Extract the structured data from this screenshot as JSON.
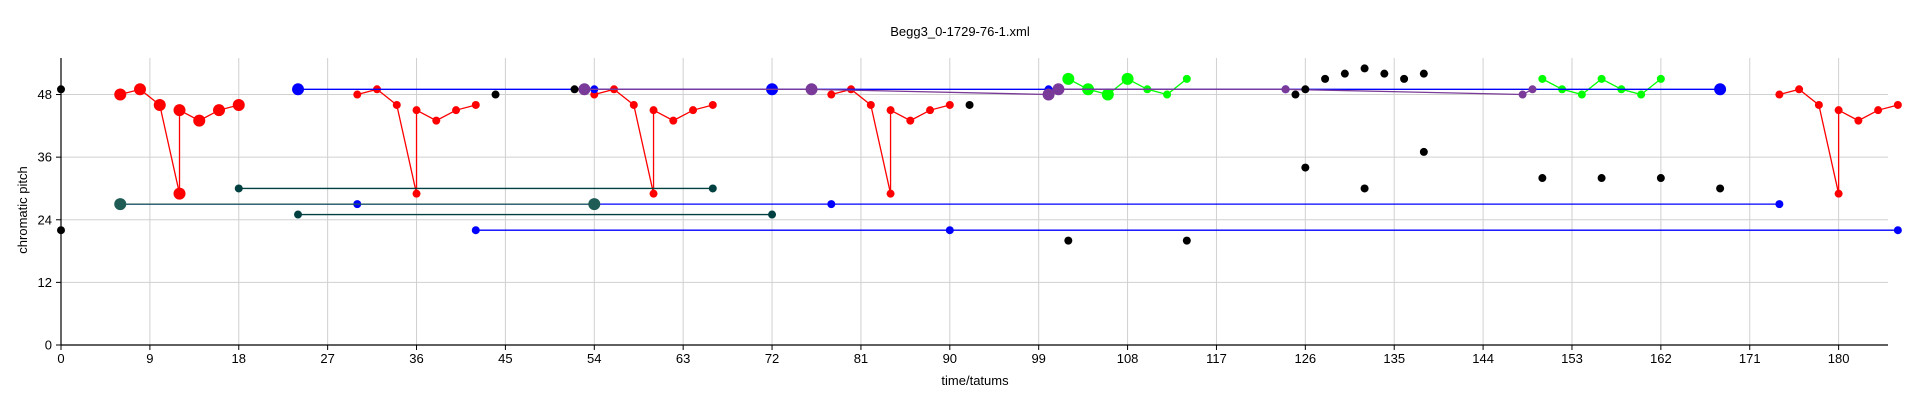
{
  "chart_data": {
    "type": "scatter",
    "title": "Begg3_0-1729-76-1.xml",
    "xlabel": "time/tatums",
    "ylabel": "chromatic pitch",
    "xlim": [
      0,
      185
    ],
    "ylim": [
      0,
      55
    ],
    "xticks": [
      0,
      9,
      18,
      27,
      36,
      45,
      54,
      63,
      72,
      81,
      90,
      99,
      108,
      117,
      126,
      135,
      144,
      153,
      162,
      171,
      180
    ],
    "yticks": [
      0,
      12,
      24,
      36,
      48
    ],
    "grid": true,
    "colors": {
      "red": "#ff0000",
      "blue": "#0000ff",
      "green": "#00ff00",
      "teal": "#1f5c55",
      "darkgreen": "#004040",
      "purple": "#7a3a99",
      "black": "#000000"
    },
    "series": [
      {
        "color": "red",
        "style": "line",
        "x": [
          6,
          8,
          10,
          12,
          12,
          14,
          16,
          18
        ],
        "y": [
          48,
          49,
          46,
          29,
          45,
          43,
          45,
          46
        ],
        "sizes": [
          2,
          2,
          2,
          2,
          2,
          2,
          2,
          2
        ]
      },
      {
        "color": "red",
        "style": "line",
        "x": [
          30,
          32,
          34,
          36,
          36,
          38,
          40,
          42
        ],
        "y": [
          48,
          49,
          46,
          29,
          45,
          43,
          45,
          46
        ]
      },
      {
        "color": "red",
        "style": "line",
        "x": [
          54,
          56,
          58,
          60,
          60,
          62,
          64,
          66
        ],
        "y": [
          48,
          49,
          46,
          29,
          45,
          43,
          45,
          46
        ]
      },
      {
        "color": "red",
        "style": "line",
        "x": [
          78,
          80,
          82,
          84,
          84,
          86,
          88,
          90
        ],
        "y": [
          48,
          49,
          46,
          29,
          45,
          43,
          45,
          46
        ]
      },
      {
        "color": "red",
        "style": "line",
        "x": [
          174,
          176,
          178,
          180,
          180,
          182,
          184,
          186
        ],
        "y": [
          48,
          49,
          46,
          29,
          45,
          43,
          45,
          46
        ]
      },
      {
        "color": "green",
        "style": "line",
        "x": [
          102,
          104,
          106,
          108,
          110,
          112,
          114
        ],
        "y": [
          51,
          49,
          48,
          51,
          49,
          48,
          51
        ],
        "sizes": [
          2,
          2,
          2,
          2,
          1,
          1,
          1
        ]
      },
      {
        "color": "green",
        "style": "line",
        "x": [
          150,
          152,
          154,
          156,
          158,
          160,
          162
        ],
        "y": [
          51,
          49,
          48,
          51,
          49,
          48,
          51
        ]
      },
      {
        "color": "blue",
        "style": "line",
        "x": [
          24,
          54,
          72,
          100,
          124,
          168
        ],
        "y": [
          49,
          49,
          49,
          49,
          49,
          49
        ],
        "sizes": [
          2,
          1,
          2,
          1,
          1,
          2
        ]
      },
      {
        "color": "blue",
        "style": "line",
        "x": [
          6,
          30,
          54,
          78,
          174
        ],
        "y": [
          27,
          27,
          27,
          27,
          27
        ]
      },
      {
        "color": "blue",
        "style": "line",
        "x": [
          42,
          90,
          186
        ],
        "y": [
          22,
          22,
          22
        ]
      },
      {
        "color": "teal",
        "style": "line",
        "x": [
          6,
          54
        ],
        "y": [
          27,
          27
        ],
        "sizes": [
          2,
          2
        ]
      },
      {
        "color": "darkgreen",
        "style": "line",
        "x": [
          18,
          66
        ],
        "y": [
          30,
          30
        ]
      },
      {
        "color": "darkgreen",
        "style": "line",
        "x": [
          24,
          72
        ],
        "y": [
          25,
          25
        ]
      },
      {
        "color": "purple",
        "style": "line",
        "x": [
          53,
          76,
          100,
          101,
          124,
          148,
          149
        ],
        "y": [
          49,
          49,
          48,
          49,
          49,
          48,
          49
        ],
        "sizes": [
          2,
          2,
          2,
          2,
          1,
          1,
          1
        ]
      },
      {
        "color": "black",
        "style": "points",
        "x": [
          0,
          0,
          44,
          52,
          92,
          102,
          114,
          125,
          126,
          126,
          128,
          130,
          132,
          132,
          134,
          136,
          138,
          138,
          150,
          156,
          162,
          168
        ],
        "y": [
          49,
          22,
          48,
          49,
          46,
          20,
          20,
          48,
          49,
          34,
          51,
          52,
          30,
          53,
          52,
          51,
          37,
          52,
          32,
          32,
          32,
          30
        ]
      }
    ]
  }
}
